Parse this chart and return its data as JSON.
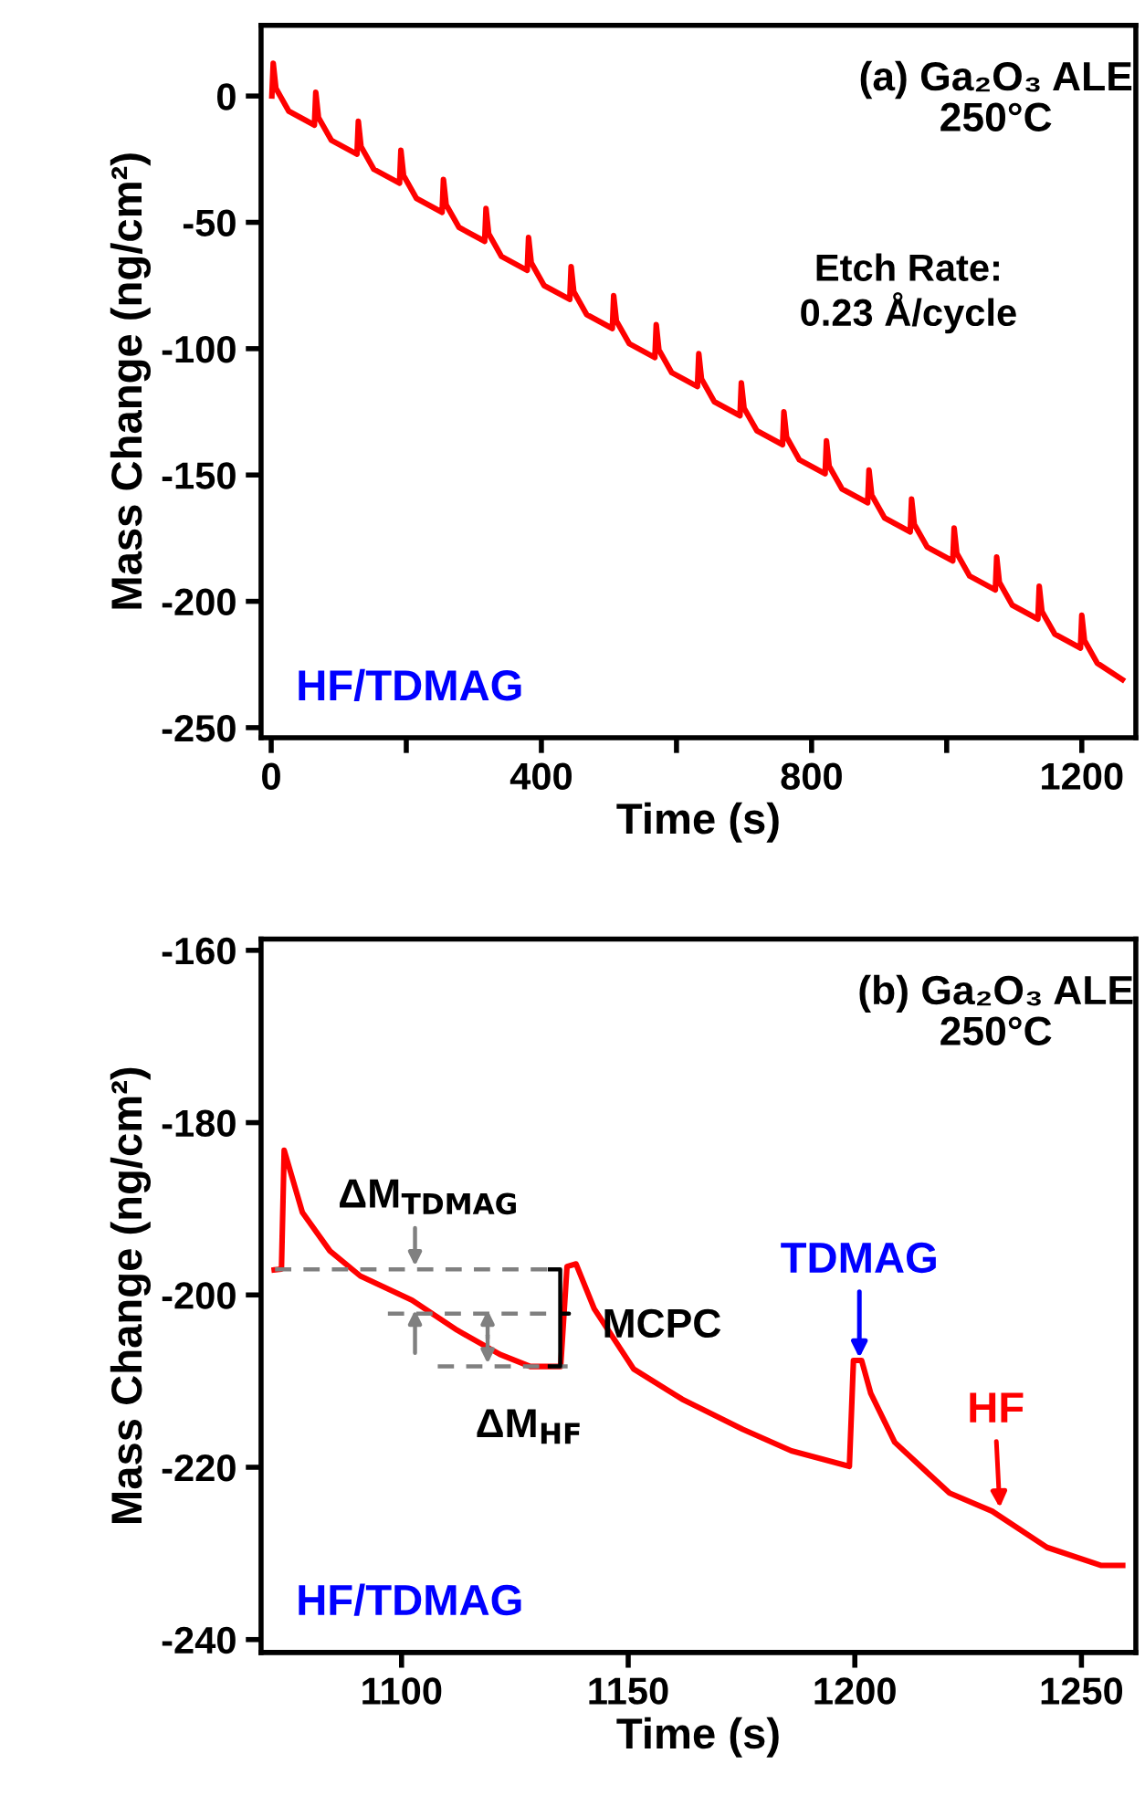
{
  "chart_data": [
    {
      "type": "line",
      "xlabel": "Time (s)",
      "ylabel": "Mass Change (ng/cm²)",
      "x": [
        1,
        3,
        7,
        26,
        64,
        66,
        70,
        89,
        127,
        129,
        133,
        152,
        190,
        192,
        196,
        215,
        253,
        255,
        259,
        278,
        316,
        318,
        322,
        341,
        379,
        381,
        385,
        404,
        442,
        444,
        448,
        467,
        505,
        507,
        511,
        530,
        568,
        570,
        574,
        593,
        631,
        633,
        637,
        656,
        694,
        696,
        700,
        719,
        757,
        759,
        763,
        782,
        820,
        822,
        826,
        845,
        883,
        885,
        889,
        908,
        946,
        948,
        952,
        971,
        1009,
        1011,
        1015,
        1034,
        1072,
        1074,
        1078,
        1097,
        1135,
        1137,
        1141,
        1160,
        1198,
        1200,
        1204,
        1223,
        1260
      ],
      "series": [
        {
          "color": "#ff0000",
          "values": [
            0,
            13,
            3,
            -6,
            -11.5,
            1.5,
            -8.5,
            -17.5,
            -23,
            -10,
            -20,
            -29,
            -34.5,
            -21.5,
            -31.5,
            -40.5,
            -46,
            -33,
            -43,
            -52,
            -57.5,
            -44.5,
            -54.5,
            -63.5,
            -69,
            -56,
            -66,
            -75,
            -80.5,
            -67.5,
            -77.5,
            -86.5,
            -92,
            -79,
            -89,
            -98,
            -103.5,
            -90.5,
            -100.5,
            -109.5,
            -115,
            -102,
            -112,
            -121,
            -126.5,
            -113.5,
            -123.5,
            -132.5,
            -138,
            -125,
            -135,
            -144,
            -149.5,
            -136.5,
            -146.5,
            -155.5,
            -161,
            -148,
            -158,
            -167,
            -172.5,
            -159.5,
            -169.5,
            -178.5,
            -184,
            -171,
            -181,
            -190,
            -195.5,
            -182.5,
            -192.5,
            -201.5,
            -207,
            -194,
            -204,
            -213,
            -218.5,
            -205.5,
            -215.5,
            -224.5,
            -231
          ]
        }
      ],
      "xlim": [
        -15,
        1280
      ],
      "ylim": [
        -254,
        28
      ],
      "xticks": [
        0,
        {
          "value": 200,
          "label": null
        },
        400,
        {
          "value": 600,
          "label": null
        },
        800,
        {
          "value": 1000,
          "label": null
        },
        1200
      ],
      "yticks": [
        0,
        -50,
        -100,
        -150,
        -200,
        -250
      ],
      "grid": false,
      "legend": false,
      "marker": "none",
      "line_style": "solid",
      "annotations": [
        "(a) Ga₂O₃ ALE\n250°C",
        "Etch Rate:\n0.23 Å/cycle",
        "HF/TDMAG"
      ]
    },
    {
      "type": "line",
      "xlabel": "Time (s)",
      "ylabel": "Mass Change (ng/cm²)",
      "x": [
        1071.9,
        1073.5,
        1074.1,
        1078.1,
        1084.2,
        1090.9,
        1102.3,
        1112.3,
        1121.7,
        1128.4,
        1135.1,
        1136.5,
        1138.5,
        1142.5,
        1151.2,
        1161.9,
        1175.3,
        1186,
        1198.8,
        1199.7,
        1201.5,
        1203.5,
        1208.8,
        1220.9,
        1230.3,
        1242.4,
        1254.4,
        1259.1
      ],
      "series": [
        {
          "color": "#ff0000",
          "values": [
            -197.1,
            -197,
            -183.2,
            -190.4,
            -194.9,
            -197.8,
            -200.6,
            -204.1,
            -206.9,
            -208.3,
            -208.3,
            -196.7,
            -196.4,
            -201.6,
            -208.6,
            -212.1,
            -215.6,
            -218.1,
            -219.9,
            -207.6,
            -207.6,
            -211.4,
            -217.1,
            -223,
            -225.1,
            -229.3,
            -231.4,
            -231.4
          ]
        }
      ],
      "xlim": [
        1069,
        1262
      ],
      "ylim": [
        -241.5,
        -158.7
      ],
      "xticks": [
        1100,
        1150,
        1200,
        1250
      ],
      "yticks": [
        -160,
        -180,
        -200,
        -220,
        -240
      ],
      "grid": false,
      "legend": false,
      "marker": "none",
      "line_style": "solid",
      "annotations": [
        "(b) Ga₂O₃ ALE\n250°C",
        "ΔM$_{TDMAG}$",
        "MCPC",
        "ΔM$_{HF}$",
        {
          "text": "TDMAG",
          "x": 1201,
          "y": -207.6
        },
        {
          "text": "HF",
          "x": 1232,
          "y": -225
        },
        "HF/TDMAG"
      ]
    }
  ]
}
